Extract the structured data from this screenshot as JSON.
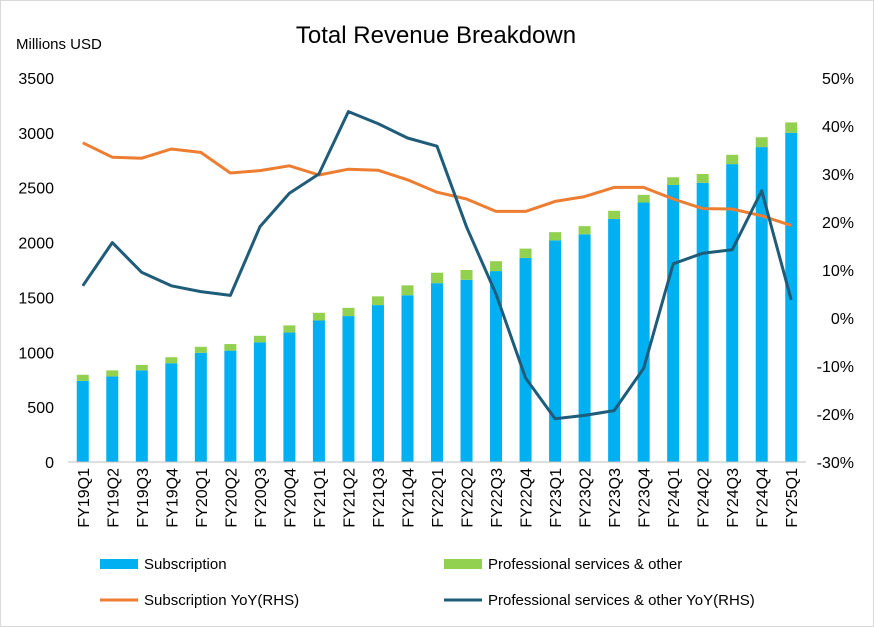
{
  "chart_data": {
    "type": "bar+line",
    "title": "Total Revenue Breakdown",
    "ylabel": "Millions USD",
    "ylim": [
      0,
      3500
    ],
    "y_ticks": [
      0,
      500,
      1000,
      1500,
      2000,
      2500,
      3000,
      3500
    ],
    "y2lim": [
      -0.3,
      0.5
    ],
    "y2_ticks": [
      "-30%",
      "-20%",
      "-10%",
      "0%",
      "10%",
      "20%",
      "30%",
      "40%",
      "50%"
    ],
    "categories": [
      "FY19Q1",
      "FY19Q2",
      "FY19Q3",
      "FY19Q4",
      "FY20Q1",
      "FY20Q2",
      "FY20Q3",
      "FY20Q4",
      "FY21Q1",
      "FY21Q2",
      "FY21Q3",
      "FY21Q4",
      "FY22Q1",
      "FY22Q2",
      "FY22Q3",
      "FY22Q4",
      "FY23Q1",
      "FY23Q2",
      "FY23Q3",
      "FY23Q4",
      "FY24Q1",
      "FY24Q2",
      "FY24Q3",
      "FY24Q4",
      "FY25Q1"
    ],
    "bar_series": [
      {
        "name": "Subscription",
        "color": "#00b0f0",
        "values": [
          740,
          780,
          835,
          900,
          995,
          1015,
          1090,
          1180,
          1290,
          1330,
          1430,
          1520,
          1630,
          1660,
          1740,
          1860,
          2020,
          2075,
          2215,
          2365,
          2525,
          2545,
          2715,
          2870,
          3000
        ]
      },
      {
        "name": "Professional services & other",
        "color": "#92d050",
        "values": [
          55,
          55,
          50,
          55,
          55,
          60,
          60,
          65,
          70,
          75,
          80,
          90,
          95,
          90,
          90,
          85,
          75,
          75,
          75,
          70,
          70,
          80,
          85,
          90,
          95
        ]
      }
    ],
    "line_series": [
      {
        "name": "Subscription YoY(RHS)",
        "color": "#ed7d31",
        "values": [
          0.365,
          0.335,
          0.333,
          0.352,
          0.345,
          0.302,
          0.307,
          0.317,
          0.298,
          0.31,
          0.308,
          0.288,
          0.262,
          0.248,
          0.222,
          0.222,
          0.243,
          0.253,
          0.272,
          0.272,
          0.248,
          0.228,
          0.227,
          0.213,
          0.193
        ]
      },
      {
        "name": "Professional services & other YoY(RHS)",
        "color": "#1f5c7a",
        "values": [
          0.067,
          0.157,
          0.095,
          0.067,
          0.055,
          0.047,
          0.19,
          0.26,
          0.3,
          0.43,
          0.405,
          0.375,
          0.358,
          0.19,
          0.05,
          -0.125,
          -0.21,
          -0.203,
          -0.193,
          -0.105,
          0.113,
          0.135,
          0.142,
          0.265,
          0.038
        ]
      }
    ],
    "legend": {
      "placement": "bottom",
      "items": [
        {
          "label": "Subscription",
          "kind": "box",
          "color": "#00b0f0"
        },
        {
          "label": "Professional services & other",
          "kind": "box",
          "color": "#92d050"
        },
        {
          "label": "Subscription YoY(RHS)",
          "kind": "line",
          "color": "#ed7d31"
        },
        {
          "label": "Professional services & other YoY(RHS)",
          "kind": "line",
          "color": "#1f5c7a"
        }
      ]
    },
    "grid": false
  }
}
